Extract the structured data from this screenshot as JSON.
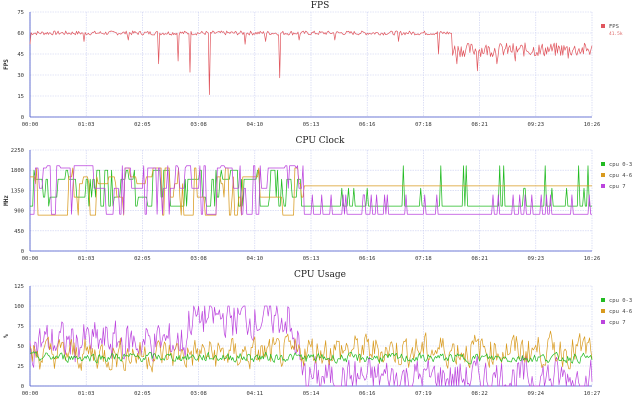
{
  "colors": {
    "fps": "#e0565e",
    "cpu_0_3": "#22bb22",
    "cpu_4_6": "#d89a1e",
    "cpu_7": "#bb44dd",
    "grid": "#c8cdf0",
    "axis": "#4050c8"
  },
  "chart_data": [
    {
      "type": "line",
      "title": "FPS",
      "ylabel": "FPS",
      "ylim": [
        0,
        75
      ],
      "yticks": [
        "0",
        "15",
        "30",
        "45",
        "60",
        "75"
      ],
      "xticks": [
        "00:00",
        "01:03",
        "02:05",
        "03:08",
        "04:10",
        "05:13",
        "06:16",
        "07:18",
        "08:21",
        "09:23",
        "10:26"
      ],
      "legend": [
        {
          "name": "FPS",
          "sub": "41.5k"
        }
      ],
      "legend_position": "right",
      "grid": true,
      "series": [
        {
          "name": "FPS",
          "color_key": "fps",
          "duration_s": 626,
          "baseline": 60,
          "dips": [
            [
              0,
              52
            ],
            [
              60,
              54
            ],
            [
              110,
              55
            ],
            [
              143,
              38
            ],
            [
              165,
              40
            ],
            [
              178,
              32
            ],
            [
              200,
              16
            ],
            [
              240,
              52
            ],
            [
              262,
              54
            ],
            [
              278,
              28
            ],
            [
              300,
              55
            ],
            [
              340,
              55
            ],
            [
              410,
              54
            ],
            [
              455,
              45
            ],
            [
              476,
              38
            ],
            [
              498,
              33
            ],
            [
              520,
              38
            ],
            [
              540,
              40
            ],
            [
              568,
              45
            ],
            [
              600,
              42
            ]
          ],
          "late_segment_start_s": 470,
          "late_segment_level": 46
        }
      ]
    },
    {
      "type": "line",
      "title": "CPU Clock",
      "ylabel": "MHz",
      "ylim": [
        0,
        2250
      ],
      "yticks": [
        "0",
        "450",
        "900",
        "1350",
        "1800",
        "2250"
      ],
      "xticks": [
        "00:00",
        "01:03",
        "02:05",
        "03:08",
        "04:10",
        "05:13",
        "06:16",
        "07:18",
        "08:21",
        "09:23",
        "10:26"
      ],
      "legend": [
        {
          "name": "cpu 0-3"
        },
        {
          "name": "cpu 4-6"
        },
        {
          "name": "cpu 7"
        }
      ],
      "legend_position": "right",
      "grid": true,
      "phase_change_s": 305,
      "series": [
        {
          "name": "cpu 0-3",
          "color_key": "cpu_0_3",
          "early_levels": [
            1000,
            1200,
            1800,
            1600
          ],
          "late_base": 1000,
          "late_spikes": [
            1400,
            1900
          ]
        },
        {
          "name": "cpu 4-6",
          "color_key": "cpu_4_6",
          "early_levels": [
            800,
            1500,
            1850,
            1200,
            1650
          ],
          "late_base": 1450
        },
        {
          "name": "cpu 7",
          "color_key": "cpu_7",
          "early_levels": [
            820,
            1900,
            1850,
            1400
          ],
          "late_base": 820,
          "late_spikes": [
            1250
          ]
        }
      ]
    },
    {
      "type": "line",
      "title": "CPU Usage",
      "ylabel": "%",
      "ylim": [
        0,
        125
      ],
      "yticks": [
        "0",
        "25",
        "50",
        "75",
        "100",
        "125"
      ],
      "xticks": [
        "00:00",
        "01:03",
        "02:05",
        "03:08",
        "04:11",
        "05:14",
        "06:16",
        "07:19",
        "08:22",
        "09:24",
        "10:27"
      ],
      "legend": [
        {
          "name": "cpu 0-3"
        },
        {
          "name": "cpu 4-6"
        },
        {
          "name": "cpu 7"
        }
      ],
      "legend_position": "right",
      "grid": true,
      "series": [
        {
          "name": "cpu 0-3",
          "color_key": "cpu_0_3",
          "mean_early": 36,
          "mean_late": 35,
          "spread": 8
        },
        {
          "name": "cpu 4-6",
          "color_key": "cpu_4_6",
          "mean_early": 40,
          "mean_late": 45,
          "spread": 28
        },
        {
          "name": "cpu 7",
          "color_key": "cpu_7",
          "mean_early": 55,
          "mean_late": 10,
          "spread": 35,
          "high_band": [
            175,
            290
          ]
        }
      ]
    }
  ]
}
